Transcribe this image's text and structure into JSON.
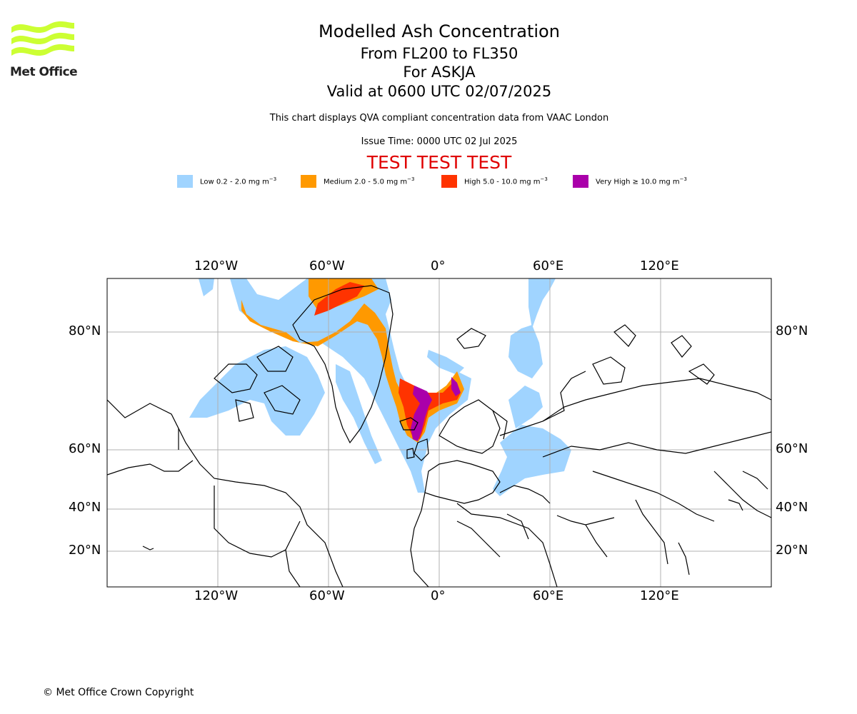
{
  "logo": {
    "text": "Met Office",
    "icon": "met-office-wave-logo",
    "color": "#ccff33"
  },
  "titles": {
    "main": "Modelled Ash Concentration",
    "levels": "From FL200 to FL350",
    "volcano": "For ASKJA",
    "valid": "Valid at 0600 UTC 02/07/2025",
    "description": "This chart displays QVA compliant concentration data from VAAC London",
    "issue": "Issue Time: 0000 UTC 02 Jul 2025",
    "test_banner": "TEST TEST TEST"
  },
  "legend": [
    {
      "label": "Low 0.2 - 2.0 mg m",
      "unit_exp": "−3",
      "color": "#a0d4ff"
    },
    {
      "label": "Medium 2.0 - 5.0 mg m",
      "unit_exp": "−3",
      "color": "#ff9900"
    },
    {
      "label": "High 5.0 - 10.0 mg m",
      "unit_exp": "−3",
      "color": "#ff3300"
    },
    {
      "label": "Very High ≥ 10.0 mg m",
      "unit_exp": "−3",
      "color": "#aa00aa"
    }
  ],
  "map": {
    "projection": "polar-stereographic-style",
    "lon_ticks": [
      "120°W",
      "60°W",
      "0°",
      "60°E",
      "120°E"
    ],
    "lat_ticks": [
      "80°N",
      "60°N",
      "40°N",
      "20°N"
    ],
    "grid": true,
    "ash_colors": {
      "low": "#a0d4ff",
      "medium": "#ff9900",
      "high": "#ff3300",
      "very_high": "#aa00aa"
    }
  },
  "footer": {
    "copyright": "© Met Office Crown Copyright"
  }
}
